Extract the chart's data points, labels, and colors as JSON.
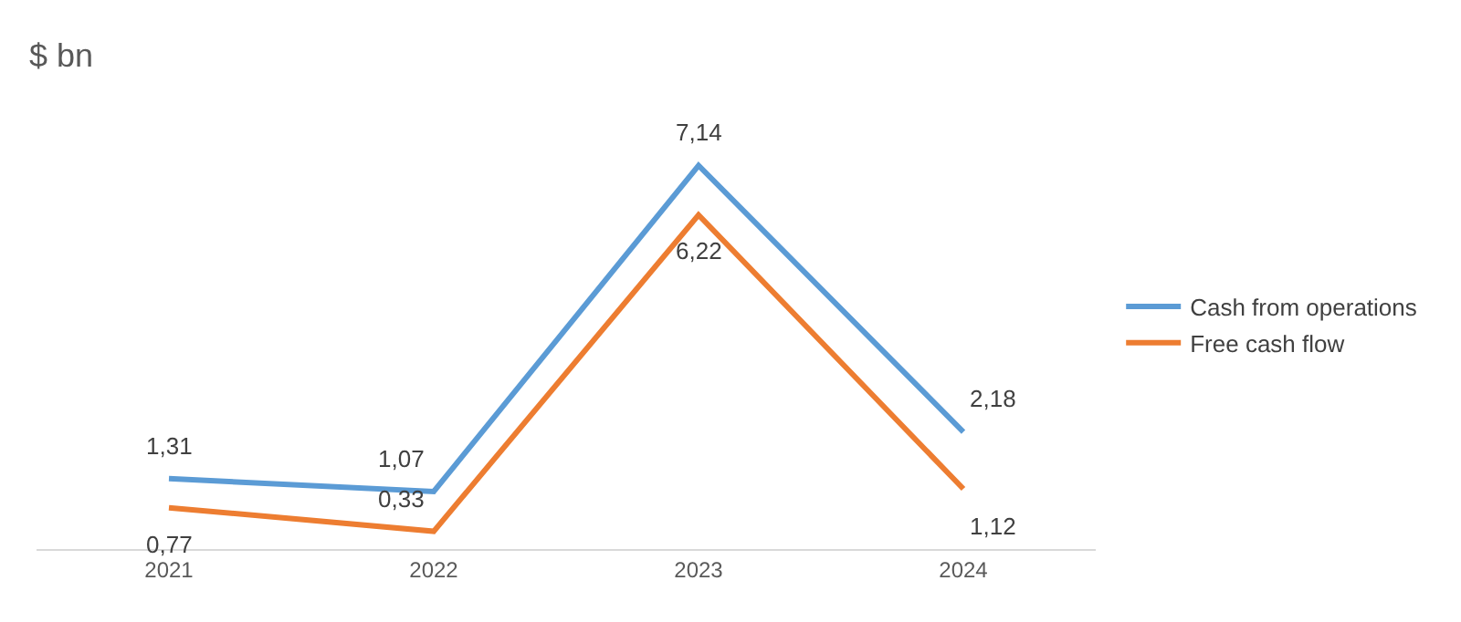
{
  "chart_data": {
    "type": "line",
    "title": "$ bn",
    "categories": [
      "2021",
      "2022",
      "2023",
      "2024"
    ],
    "series": [
      {
        "name": "Cash from operations",
        "color": "#5b9bd5",
        "values": [
          1.31,
          1.07,
          7.14,
          2.18
        ],
        "value_labels": [
          "1,31",
          "1,07",
          "7,14",
          "2,18"
        ]
      },
      {
        "name": "Free cash flow",
        "color": "#ed7d31",
        "values": [
          0.77,
          0.33,
          6.22,
          1.12
        ],
        "value_labels": [
          "0,77",
          "0,33",
          "6,22",
          "1,12"
        ]
      }
    ],
    "legend": "right",
    "grid": false,
    "marker": "none",
    "line_style": "solid",
    "tick_labels": "x"
  }
}
